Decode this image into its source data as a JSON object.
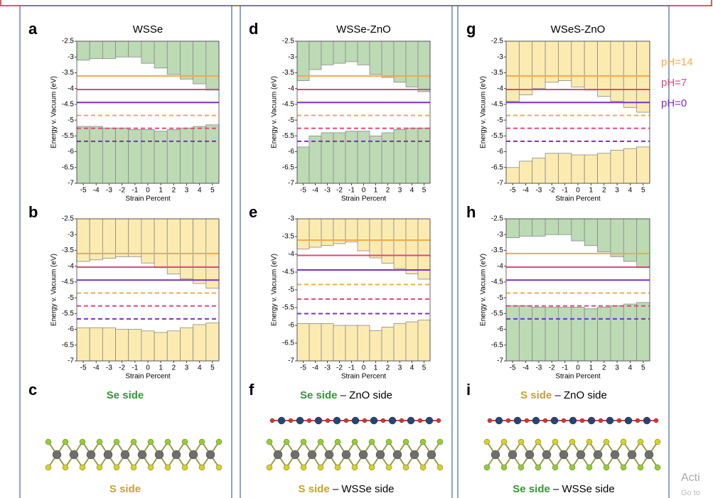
{
  "chart_data": [
    {
      "type": "band-edge",
      "label": "a",
      "title": "WSSe",
      "xlabel": "Strain Percent",
      "ylabel": "Energy v. Vacuum (eV)",
      "xlim": [
        -5.5,
        5.5
      ],
      "xticks": [
        -5,
        -4,
        -3,
        -2,
        -1,
        0,
        1,
        2,
        3,
        4,
        5
      ],
      "ylim": [
        -7,
        -2.5
      ],
      "yticks": [
        -7,
        -6.5,
        -6,
        -5.5,
        -5,
        -4.5,
        -4,
        -3.5,
        -3,
        -2.5
      ],
      "conduction": {
        "color": "#bcdab4",
        "values": [
          -3.1,
          -3.05,
          -3.05,
          -3,
          -3,
          -3.2,
          -3.35,
          -3.55,
          -3.7,
          -3.85,
          -4.05
        ]
      },
      "valence": {
        "color": "#bcdab4",
        "values": [
          -5.2,
          -5.2,
          -5.25,
          -5.25,
          -5.3,
          -5.3,
          -5.35,
          -5.3,
          -5.25,
          -5.2,
          -5.15
        ]
      },
      "levels": [
        {
          "value": -3.6,
          "color": "#f5a84a",
          "dashed": false
        },
        {
          "value": -4.03,
          "color": "#e0487a",
          "dashed": false
        },
        {
          "value": -4.44,
          "color": "#7b2fc9",
          "dashed": false
        },
        {
          "value": -4.85,
          "color": "#f5a84a",
          "dashed": true
        },
        {
          "value": -5.26,
          "color": "#e0487a",
          "dashed": true
        },
        {
          "value": -5.67,
          "color": "#7b2fc9",
          "dashed": true
        }
      ]
    },
    {
      "type": "band-edge",
      "label": "b",
      "xlabel": "Strain Percent",
      "ylabel": "Energy v. Vacuum (eV)",
      "xlim": [
        -5.5,
        5.5
      ],
      "xticks": [
        -5,
        -4,
        -3,
        -2,
        -1,
        0,
        1,
        2,
        3,
        4,
        5
      ],
      "ylim": [
        -7,
        -2.5
      ],
      "yticks": [
        -7,
        -6.5,
        -6,
        -5.5,
        -5,
        -4.5,
        -4,
        -3.5,
        -3,
        -2.5
      ],
      "conduction": {
        "color": "#fcebb0",
        "values": [
          -3.85,
          -3.8,
          -3.75,
          -3.7,
          -3.7,
          -3.9,
          -4.05,
          -4.25,
          -4.4,
          -4.55,
          -4.7
        ]
      },
      "valence": {
        "color": "#fcebb0",
        "values": [
          -5.95,
          -5.95,
          -5.95,
          -6,
          -6,
          -6.05,
          -6.1,
          -6.05,
          -5.95,
          -5.85,
          -5.8
        ]
      },
      "levels": [
        {
          "value": -3.6,
          "color": "#f5a84a",
          "dashed": false
        },
        {
          "value": -4.03,
          "color": "#e0487a",
          "dashed": false
        },
        {
          "value": -4.44,
          "color": "#7b2fc9",
          "dashed": false
        },
        {
          "value": -4.85,
          "color": "#f5a84a",
          "dashed": true
        },
        {
          "value": -5.26,
          "color": "#e0487a",
          "dashed": true
        },
        {
          "value": -5.67,
          "color": "#7b2fc9",
          "dashed": true
        }
      ]
    },
    {
      "type": "band-edge",
      "label": "d",
      "title": "WSSe-ZnO",
      "xlabel": "Strain Percent",
      "ylabel": "Energy v. Vacuum (eV)",
      "xlim": [
        -5.5,
        5.5
      ],
      "xticks": [
        -5,
        -4,
        -3,
        -2,
        -1,
        0,
        1,
        2,
        3,
        4,
        5
      ],
      "ylim": [
        -7,
        -2.5
      ],
      "yticks": [
        -7,
        -6.5,
        -6,
        -5.5,
        -5,
        -4.5,
        -4,
        -3.5,
        -3,
        -2.5
      ],
      "conduction": {
        "color": "#bcdab4",
        "values": [
          -3.75,
          -3.4,
          -3.25,
          -3.2,
          -3.15,
          -3.25,
          -3.55,
          -3.65,
          -3.8,
          -3.95,
          -4.1
        ]
      },
      "valence": {
        "color": "#bcdab4",
        "values": [
          -5.85,
          -5.5,
          -5.4,
          -5.4,
          -5.35,
          -5.35,
          -5.5,
          -5.4,
          -5.3,
          -5.25,
          -5.25
        ]
      },
      "levels": [
        {
          "value": -3.6,
          "color": "#f5a84a",
          "dashed": false
        },
        {
          "value": -4.03,
          "color": "#e0487a",
          "dashed": false
        },
        {
          "value": -4.44,
          "color": "#7b2fc9",
          "dashed": false
        },
        {
          "value": -4.85,
          "color": "#f5a84a",
          "dashed": true
        },
        {
          "value": -5.26,
          "color": "#e0487a",
          "dashed": true
        },
        {
          "value": -5.67,
          "color": "#7b2fc9",
          "dashed": true
        }
      ]
    },
    {
      "type": "band-edge",
      "label": "e",
      "xlabel": "Strain Percent",
      "ylabel": "Energy v. Vacuum (eV)",
      "xlim": [
        -5.5,
        5.5
      ],
      "xticks": [
        -5,
        -4,
        -3,
        -2,
        -1,
        0,
        1,
        2,
        3,
        4,
        5
      ],
      "ylim": [
        -7,
        -3
      ],
      "yticks": [
        -7,
        -6.5,
        -6,
        -5.5,
        -5,
        -4.5,
        -4,
        -3.5,
        -3
      ],
      "conduction": {
        "color": "#fcebb0",
        "values": [
          -3.85,
          -3.8,
          -3.75,
          -3.7,
          -3.65,
          -3.9,
          -4.1,
          -4.25,
          -4.4,
          -4.55,
          -4.7
        ]
      },
      "valence": {
        "color": "#fcebb0",
        "values": [
          -5.95,
          -5.95,
          -5.95,
          -6,
          -6,
          -6,
          -6.15,
          -6.05,
          -5.95,
          -5.9,
          -5.85
        ]
      },
      "levels": [
        {
          "value": -3.6,
          "color": "#f5a84a",
          "dashed": false
        },
        {
          "value": -4.03,
          "color": "#e0487a",
          "dashed": false
        },
        {
          "value": -4.44,
          "color": "#7b2fc9",
          "dashed": false
        },
        {
          "value": -4.85,
          "color": "#f5a84a",
          "dashed": true
        },
        {
          "value": -5.26,
          "color": "#e0487a",
          "dashed": true
        },
        {
          "value": -5.67,
          "color": "#7b2fc9",
          "dashed": true
        }
      ]
    },
    {
      "type": "band-edge",
      "label": "g",
      "title": "WSeS-ZnO",
      "xlabel": "Strain Percent",
      "ylabel": "Energy v. Vacuum (eV)",
      "xlim": [
        -5.5,
        5.5
      ],
      "xticks": [
        -5,
        -4,
        -3,
        -2,
        -1,
        0,
        1,
        2,
        3,
        4,
        5
      ],
      "ylim": [
        -7,
        -2.5
      ],
      "yticks": [
        -7,
        -6.5,
        -6,
        -5.5,
        -5,
        -4.5,
        -4,
        -3.5,
        -3,
        -2.5
      ],
      "conduction": {
        "color": "#fcebb0",
        "values": [
          -4.4,
          -4.2,
          -4,
          -3.8,
          -3.75,
          -3.95,
          -4.05,
          -4.25,
          -4.4,
          -4.6,
          -4.75
        ]
      },
      "valence": {
        "color": "#fcebb0",
        "values": [
          -6.5,
          -6.3,
          -6.2,
          -6.05,
          -6.05,
          -6.1,
          -6.1,
          -6.05,
          -5.95,
          -5.9,
          -5.85
        ]
      },
      "levels": [
        {
          "value": -3.6,
          "color": "#f5a84a",
          "dashed": false
        },
        {
          "value": -4.03,
          "color": "#e0487a",
          "dashed": false
        },
        {
          "value": -4.44,
          "color": "#7b2fc9",
          "dashed": false
        },
        {
          "value": -4.85,
          "color": "#f5a84a",
          "dashed": true
        },
        {
          "value": -5.26,
          "color": "#e0487a",
          "dashed": true
        },
        {
          "value": -5.67,
          "color": "#7b2fc9",
          "dashed": true
        }
      ],
      "legend": [
        {
          "label": "pH=14",
          "color": "#f5a84a"
        },
        {
          "label": "pH=7",
          "color": "#e0487a"
        },
        {
          "label": "pH=0",
          "color": "#7b2fc9"
        }
      ]
    },
    {
      "type": "band-edge",
      "label": "h",
      "xlabel": "Strain Percent",
      "ylabel": "Energy v. Vacuum (eV)",
      "xlim": [
        -5.5,
        5.5
      ],
      "xticks": [
        -5,
        -4,
        -3,
        -2,
        -1,
        0,
        1,
        2,
        3,
        4,
        5
      ],
      "ylim": [
        -7,
        -2.5
      ],
      "yticks": [
        -7,
        -6.5,
        -6,
        -5.5,
        -5,
        -4.5,
        -4,
        -3.5,
        -3,
        -2.5
      ],
      "conduction": {
        "color": "#bcdab4",
        "values": [
          -3.1,
          -3.05,
          -3.05,
          -3,
          -3,
          -3.2,
          -3.35,
          -3.55,
          -3.7,
          -3.85,
          -4.05
        ]
      },
      "valence": {
        "color": "#bcdab4",
        "values": [
          -5.25,
          -5.25,
          -5.3,
          -5.3,
          -5.3,
          -5.3,
          -5.35,
          -5.3,
          -5.25,
          -5.2,
          -5.15
        ]
      },
      "levels": [
        {
          "value": -3.6,
          "color": "#f5a84a",
          "dashed": false
        },
        {
          "value": -4.03,
          "color": "#e0487a",
          "dashed": false
        },
        {
          "value": -4.44,
          "color": "#7b2fc9",
          "dashed": false
        },
        {
          "value": -4.85,
          "color": "#f5a84a",
          "dashed": true
        },
        {
          "value": -5.26,
          "color": "#e0487a",
          "dashed": true
        },
        {
          "value": -5.67,
          "color": "#7b2fc9",
          "dashed": true
        }
      ]
    }
  ],
  "structures": [
    {
      "label": "c",
      "top": [
        {
          "text": "Se side",
          "color": "#2e9a2e"
        }
      ],
      "bottom": [
        {
          "text": "S side",
          "color": "#c9a227"
        }
      ]
    },
    {
      "label": "f",
      "top": [
        {
          "text": "Se side",
          "color": "#2e9a2e"
        },
        {
          "text": " – ZnO side",
          "color": "#000000"
        }
      ],
      "bottom": [
        {
          "text": "S side",
          "color": "#c9a227"
        },
        {
          "text": " – WSSe side",
          "color": "#000000"
        }
      ]
    },
    {
      "label": "i",
      "top": [
        {
          "text": "S side",
          "color": "#c9a227"
        },
        {
          "text": " – ZnO side",
          "color": "#000000"
        }
      ],
      "bottom": [
        {
          "text": "Se side",
          "color": "#2e9a2e"
        },
        {
          "text": " – WSSe side",
          "color": "#000000"
        }
      ]
    }
  ],
  "watermark": [
    "Acti",
    "Go to"
  ]
}
